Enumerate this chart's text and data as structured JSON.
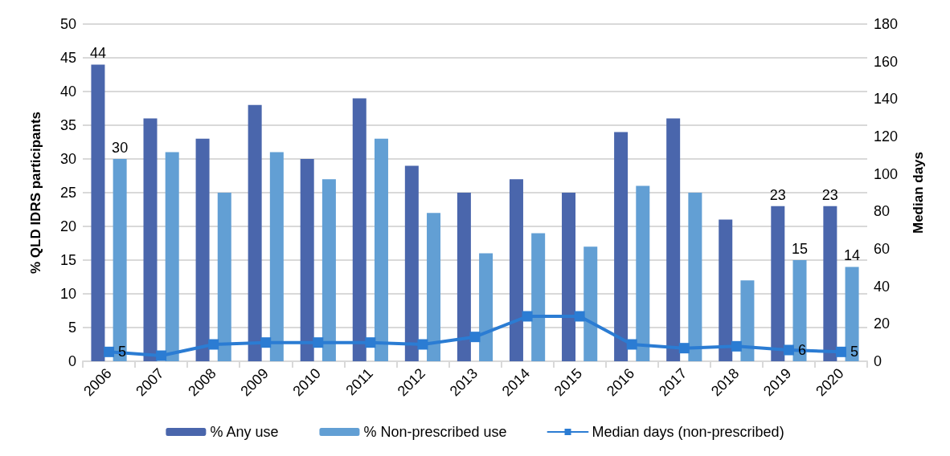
{
  "chart_data": {
    "type": "bar",
    "ylabel": "% QLD IDRS participants",
    "y2label": "Median days",
    "categories": [
      "2006",
      "2007",
      "2008",
      "2009",
      "2010",
      "2011",
      "2012",
      "2013",
      "2014",
      "2015",
      "2016",
      "2017",
      "2018",
      "2019",
      "2020"
    ],
    "series": [
      {
        "name": "% Any use",
        "color": "#4a66ac",
        "values": [
          44,
          36,
          33,
          38,
          30,
          39,
          29,
          25,
          27,
          25,
          34,
          36,
          21,
          23,
          23
        ],
        "value_labels": [
          "44",
          null,
          null,
          null,
          null,
          null,
          null,
          null,
          null,
          null,
          null,
          null,
          null,
          "23",
          "23"
        ]
      },
      {
        "name": "% Non-prescribed use",
        "color": "#629fd4",
        "values": [
          30,
          31,
          25,
          31,
          27,
          33,
          22,
          16,
          19,
          17,
          26,
          25,
          12,
          15,
          14
        ],
        "value_labels": [
          "30",
          null,
          null,
          null,
          null,
          null,
          null,
          null,
          null,
          null,
          null,
          null,
          null,
          "15",
          "14"
        ]
      },
      {
        "name": "Median days (non-prescribed)",
        "type": "line",
        "axis": "y2",
        "color": "#2b7cd3",
        "marker": "square",
        "values": [
          5,
          3,
          9,
          10,
          10,
          10,
          9,
          13,
          24,
          24,
          9,
          7,
          8,
          6,
          5
        ],
        "value_labels": [
          "5",
          null,
          null,
          null,
          null,
          null,
          null,
          null,
          null,
          null,
          null,
          null,
          null,
          "6",
          "5"
        ]
      }
    ],
    "ylim": [
      0,
      50
    ],
    "yticks": [
      0,
      5,
      10,
      15,
      20,
      25,
      30,
      35,
      40,
      45,
      50
    ],
    "y2lim": [
      0,
      180
    ],
    "y2ticks": [
      0,
      20,
      40,
      60,
      80,
      100,
      120,
      140,
      160,
      180
    ],
    "grid": "y",
    "legend": "bottom"
  }
}
